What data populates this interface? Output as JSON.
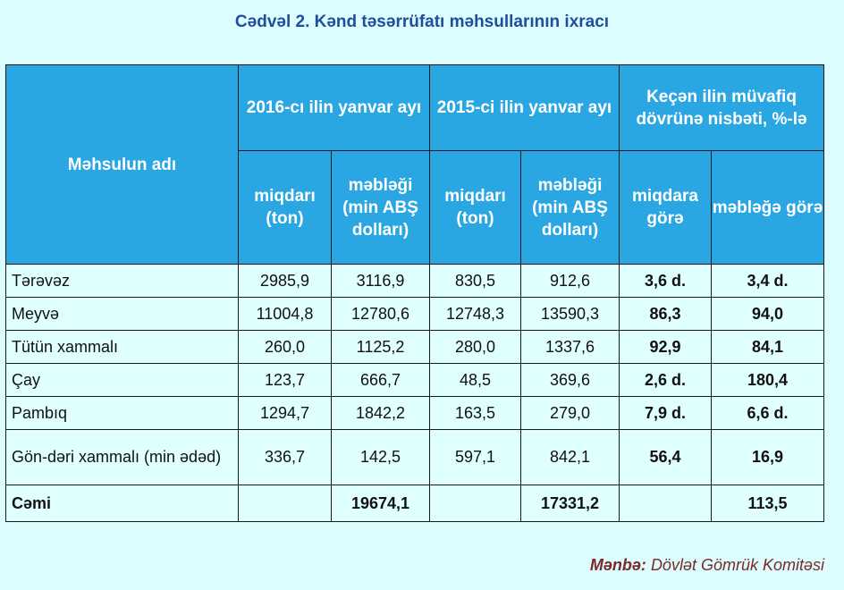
{
  "title": "Cədvəl 2. Kənd təsərrüfatı məhsullarının ixracı",
  "header": {
    "product": "Məhsulun adı",
    "period_2016": "2016-cı ilin yanvar ayı",
    "period_2015": "2015-ci ilin yanvar ayı",
    "ratio": "Keçən ilin müvafiq dövrünə nisbəti, %-lə",
    "qty": "miqdarı (ton)",
    "amount": "məbləği (min ABŞ dolları)",
    "by_qty": "miqdara görə",
    "by_amount": "məbləğə görə"
  },
  "rows": [
    {
      "name": "Tərəvəz",
      "q2016": "2985,9",
      "a2016": "3116,9",
      "q2015": "830,5",
      "a2015": "912,6",
      "rq": "3,6 d.",
      "ra": "3,4 d."
    },
    {
      "name": "Meyvə",
      "q2016": "11004,8",
      "a2016": "12780,6",
      "q2015": "12748,3",
      "a2015": "13590,3",
      "rq": "86,3",
      "ra": "94,0"
    },
    {
      "name": "Tütün xammalı",
      "q2016": "260,0",
      "a2016": "1125,2",
      "q2015": "280,0",
      "a2015": "1337,6",
      "rq": "92,9",
      "ra": "84,1"
    },
    {
      "name": "Çay",
      "q2016": "123,7",
      "a2016": "666,7",
      "q2015": "48,5",
      "a2015": "369,6",
      "rq": "2,6 d.",
      "ra": "180,4"
    },
    {
      "name": "Pambıq",
      "q2016": "1294,7",
      "a2016": "1842,2",
      "q2015": "163,5",
      "a2015": "279,0",
      "rq": "7,9 d.",
      "ra": "6,6 d."
    },
    {
      "name": "Gön-dəri xammalı (min ədəd)",
      "q2016": "336,7",
      "a2016": "142,5",
      "q2015": "597,1",
      "a2015": "842,1",
      "rq": "56,4",
      "ra": "16,9"
    }
  ],
  "total": {
    "name": "Cəmi",
    "a2016": "19674,1",
    "a2015": "17331,2",
    "ra": "113,5"
  },
  "source": {
    "label": "Mənbə:",
    "text": "Dövlət Gömrük Komitəsi"
  }
}
